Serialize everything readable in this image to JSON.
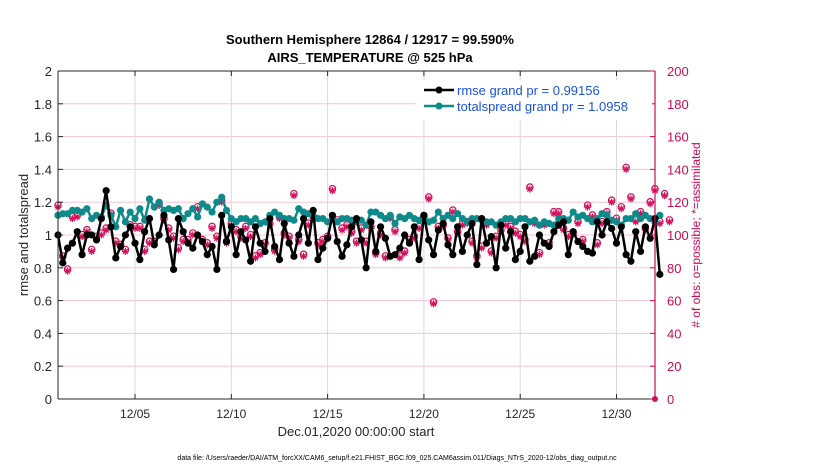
{
  "chart_data": {
    "type": "line",
    "title": "Southern Hemisphere 12864 / 12917 = 99.590%",
    "subtitle": "AIRS_TEMPERATURE @ 525 hPa",
    "xlabel": "Dec.01,2020 00:00:00 start",
    "ylabel": "rmse and totalspread",
    "ylabel_right": "# of obs: o=possible; *=assimilated",
    "footnote": "data file: /Users/raeder/DAI/ATM_forcXX/CAM6_setup/f.e21.FHIST_BGC.f09_025.CAM6assim.011/Diags_NTrS_2020-12/obs_diag_output.nc",
    "x_unit": "day of December 2020",
    "xlim": [
      1,
      32
    ],
    "x_ticks": [
      5,
      10,
      15,
      20,
      25,
      30
    ],
    "x_tick_labels": [
      "12/05",
      "12/10",
      "12/15",
      "12/20",
      "12/25",
      "12/30"
    ],
    "ylim": [
      0,
      2
    ],
    "y_ticks": [
      0,
      0.2,
      0.4,
      0.6,
      0.8,
      1,
      1.2,
      1.4,
      1.6,
      1.8,
      2
    ],
    "y_tick_labels": [
      "0",
      "0.2",
      "0.4",
      "0.6",
      "0.8",
      "1",
      "1.2",
      "1.4",
      "1.6",
      "1.8",
      "2"
    ],
    "ylim_right": [
      0,
      200
    ],
    "y_ticks_right": [
      0,
      20,
      40,
      60,
      80,
      100,
      120,
      140,
      160,
      180,
      200
    ],
    "y_tick_labels_right": [
      "0",
      "20",
      "40",
      "60",
      "80",
      "100",
      "120",
      "140",
      "160",
      "180",
      "200"
    ],
    "grid": true,
    "legend_position": "top-right",
    "colors": {
      "rmse": "#000000",
      "spread": "#0e8a8a",
      "obs": "#d6105c",
      "legend_text": "#1a52e0",
      "right_axis": "#cc0a55"
    },
    "x_start": 1,
    "x_step": 0.25,
    "series": [
      {
        "name": "rmse grand pr = 0.99156",
        "axis": "left",
        "values": [
          1.0,
          0.83,
          0.92,
          0.95,
          1.02,
          0.88,
          1.0,
          1.0,
          0.97,
          1.1,
          1.27,
          1.05,
          0.86,
          0.93,
          1.0,
          1.05,
          0.95,
          0.85,
          1.02,
          1.1,
          0.94,
          1.0,
          1.12,
          0.97,
          0.79,
          1.1,
          1.02,
          0.95,
          0.92,
          1.0,
          0.96,
          0.88,
          0.93,
          0.79,
          1.12,
          0.96,
          1.05,
          0.88,
          1.02,
          0.97,
          0.84,
          1.05,
          0.95,
          0.9,
          1.1,
          0.93,
          0.85,
          1.07,
          0.95,
          0.87,
          1.0,
          1.1,
          0.95,
          1.15,
          0.85,
          0.92,
          0.98,
          1.12,
          0.96,
          0.87,
          0.94,
          1.05,
          1.1,
          0.97,
          0.8,
          1.08,
          0.9,
          1.05,
          0.98,
          0.87,
          0.88,
          0.92,
          1.0,
          0.95,
          1.05,
          0.85,
          1.12,
          0.97,
          0.88,
          1.03,
          1.07,
          0.94,
          0.88,
          1.05,
          0.9,
          1.0,
          1.07,
          0.82,
          1.1,
          0.95,
          0.99,
          0.8,
          1.06,
          0.92,
          1.02,
          0.85,
          0.9,
          1.05,
          0.84,
          0.87,
          1.0,
          0.95,
          0.93,
          1.02,
          1.06,
          1.08,
          0.88,
          1.02,
          0.96,
          0.93,
          0.9,
          0.89,
          1.08,
          1.0,
          1.08,
          1.04,
          0.95,
          1.05,
          0.88,
          0.84,
          1.02,
          0.9,
          1.05,
          0.98,
          1.1,
          0.76
        ],
        "marker": "filled-circle"
      },
      {
        "name": "totalspread grand pr = 1.0958",
        "axis": "left",
        "values": [
          1.12,
          1.13,
          1.13,
          1.15,
          1.15,
          1.14,
          1.16,
          1.1,
          1.12,
          1.11,
          1.18,
          1.12,
          1.05,
          1.15,
          1.08,
          1.14,
          1.1,
          1.16,
          1.09,
          1.22,
          1.17,
          1.2,
          1.15,
          1.16,
          1.15,
          1.16,
          1.1,
          1.13,
          1.16,
          1.11,
          1.19,
          1.17,
          1.14,
          1.2,
          1.23,
          1.15,
          1.1,
          1.08,
          1.1,
          1.1,
          1.08,
          1.1,
          1.07,
          1.08,
          1.12,
          1.14,
          1.12,
          1.1,
          1.1,
          1.09,
          1.16,
          1.14,
          1.13,
          1.12,
          1.1,
          1.1,
          1.08,
          1.1,
          1.08,
          1.1,
          1.1,
          1.09,
          1.08,
          1.09,
          1.06,
          1.14,
          1.14,
          1.12,
          1.1,
          1.12,
          1.07,
          1.11,
          1.1,
          1.12,
          1.1,
          1.09,
          1.12,
          1.08,
          1.09,
          1.14,
          1.1,
          1.12,
          1.1,
          1.13,
          1.1,
          1.08,
          1.1,
          1.1,
          1.09,
          1.08,
          1.08,
          1.06,
          1.08,
          1.1,
          1.1,
          1.08,
          1.1,
          1.1,
          1.08,
          1.09,
          1.06,
          1.08,
          1.07,
          1.06,
          1.1,
          1.1,
          1.09,
          1.14,
          1.11,
          1.12,
          1.1,
          1.08,
          1.1,
          1.13,
          1.12,
          1.09,
          1.08,
          1.06,
          1.1,
          1.1,
          1.13,
          1.1,
          1.12,
          1.1,
          1.08,
          1.12
        ],
        "marker": "filled-circle"
      },
      {
        "name": "# of obs assimilated",
        "axis": "right",
        "values": [
          117,
          86,
          78,
          110,
          111,
          99,
          102,
          90,
          98,
          100,
          103,
          112,
          95,
          93,
          90,
          105,
          104,
          104,
          90,
          95,
          95,
          118,
          109,
          103,
          98,
          91,
          96,
          96,
          100,
          116,
          96,
          94,
          104,
          98,
          120,
          95,
          106,
          102,
          98,
          104,
          99,
          86,
          88,
          94,
          106,
          90,
          110,
          100,
          98,
          124,
          96,
          87,
          106,
          110,
          94,
          96,
          98,
          127,
          108,
          103,
          105,
          101,
          95,
          103,
          95,
          104,
          88,
          100,
          86,
          110,
          102,
          86,
          89,
          96,
          98,
          104,
          110,
          122,
          58,
          104,
          105,
          97,
          114,
          101,
          106,
          107,
          95,
          86,
          92,
          106,
          89,
          98,
          102,
          106,
          104,
          101,
          99,
          96,
          128,
          107,
          88,
          106,
          94,
          113,
          113,
          103,
          99,
          100,
          107,
          96,
          117,
          111,
          94,
          107,
          113,
          120,
          109,
          116,
          140,
          122,
          108,
          113,
          103,
          119,
          127,
          107,
          124,
          108
        ],
        "marker": "asterisk"
      },
      {
        "name": "# of obs possible",
        "axis": "right",
        "values": [
          117,
          86,
          78,
          110,
          111,
          99,
          102,
          90,
          98,
          100,
          103,
          112,
          95,
          93,
          90,
          105,
          104,
          104,
          90,
          95,
          95,
          118,
          109,
          103,
          98,
          91,
          96,
          96,
          100,
          116,
          96,
          94,
          104,
          98,
          120,
          95,
          106,
          102,
          98,
          104,
          99,
          86,
          88,
          94,
          106,
          90,
          110,
          100,
          98,
          124,
          96,
          87,
          106,
          110,
          94,
          96,
          98,
          127,
          108,
          103,
          105,
          101,
          95,
          103,
          95,
          104,
          88,
          100,
          86,
          110,
          102,
          86,
          89,
          96,
          98,
          104,
          110,
          122,
          58,
          104,
          105,
          97,
          114,
          101,
          106,
          107,
          95,
          86,
          92,
          106,
          89,
          98,
          102,
          106,
          104,
          101,
          99,
          96,
          128,
          107,
          88,
          106,
          94,
          113,
          113,
          103,
          99,
          100,
          107,
          96,
          117,
          111,
          94,
          107,
          113,
          120,
          109,
          116,
          140,
          122,
          108,
          113,
          103,
          119,
          127,
          107,
          124,
          108
        ],
        "marker": "open-circle"
      }
    ],
    "legend": [
      {
        "label": "rmse grand pr = 0.99156",
        "series": 0
      },
      {
        "label": "totalspread grand pr = 1.0958",
        "series": 1
      }
    ]
  }
}
